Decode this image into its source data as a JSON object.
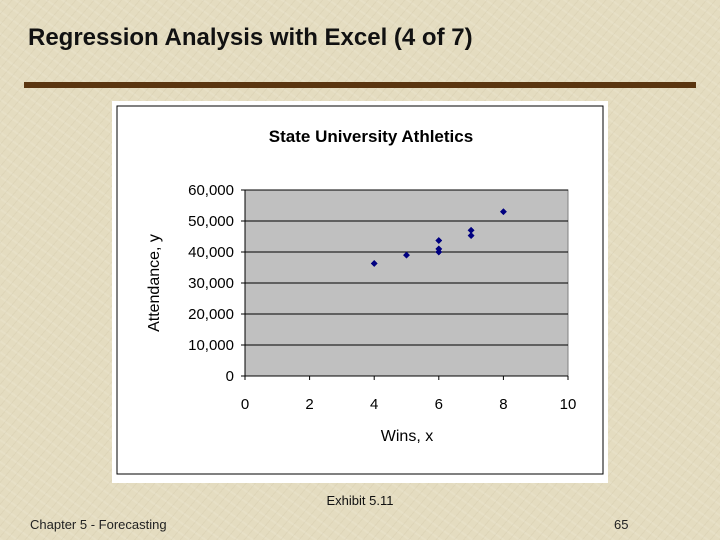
{
  "slide": {
    "title": "Regression Analysis with Excel (4 of 7)",
    "caption": "Exhibit 5.11",
    "footer_left": "Chapter 5 - Forecasting",
    "page_number": "65"
  },
  "colors": {
    "background": "#e4dcc0",
    "rule": "#5a3510",
    "plot_area": "#c0c0c0",
    "marker": "#000080"
  },
  "chart_data": {
    "type": "scatter",
    "title": "State University Athletics",
    "xlabel": "Wins, x",
    "ylabel": "Attendance, y",
    "xlim": [
      0,
      10
    ],
    "ylim": [
      0,
      60000
    ],
    "x_ticks": [
      0,
      2,
      4,
      6,
      8,
      10
    ],
    "y_ticks": [
      0,
      10000,
      20000,
      30000,
      40000,
      50000,
      60000
    ],
    "x_tick_labels": [
      "0",
      "2",
      "4",
      "6",
      "8",
      "10"
    ],
    "y_tick_labels": [
      "0",
      "10,000",
      "20,000",
      "30,000",
      "40,000",
      "50,000",
      "60,000"
    ],
    "grid": "horizontal",
    "legend": "none",
    "points": [
      {
        "x": 4,
        "y": 36300
      },
      {
        "x": 5,
        "y": 39000
      },
      {
        "x": 6,
        "y": 40000
      },
      {
        "x": 6,
        "y": 41000
      },
      {
        "x": 6,
        "y": 43700
      },
      {
        "x": 7,
        "y": 45300
      },
      {
        "x": 7,
        "y": 47000
      },
      {
        "x": 8,
        "y": 53000
      }
    ]
  }
}
